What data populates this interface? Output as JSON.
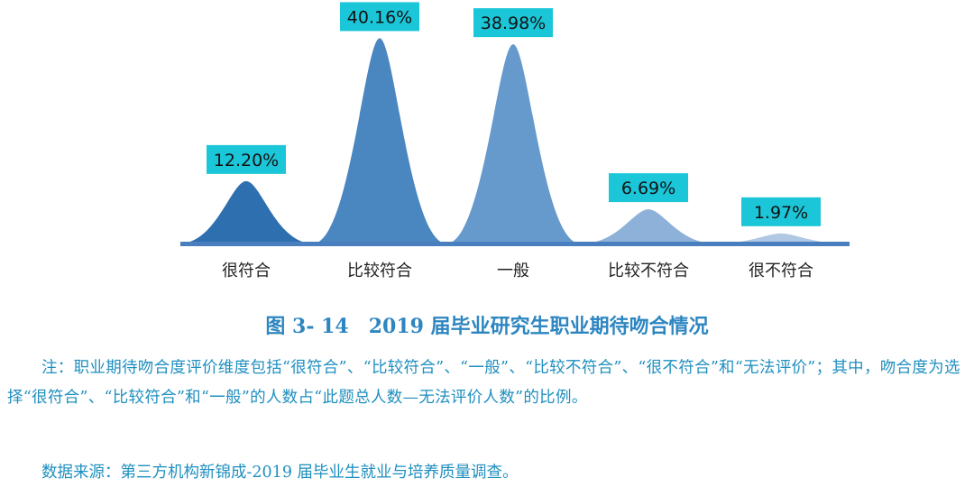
{
  "chart_data": {
    "type": "area",
    "categories": [
      "很符合",
      "比较符合",
      "一般",
      "比较不符合",
      "很不符合"
    ],
    "values": [
      12.2,
      40.16,
      38.98,
      6.69,
      1.97
    ],
    "data_labels": [
      "12.20%",
      "40.16%",
      "38.98%",
      "6.69%",
      "1.97%"
    ],
    "ylim": [
      0,
      45
    ],
    "grid": false,
    "colors": [
      "#2e6fb0",
      "#4a86c0",
      "#6699cc",
      "#8eb1d9",
      "#b0c8e4"
    ],
    "label_bg": "#1bc6d8",
    "baseline_color": "#4a7fbf"
  },
  "caption": "图 3- 14　2019 届毕业研究生职业期待吻合情况",
  "note": "注：职业期待吻合度评价维度包括“很符合”、“比较符合”、“一般”、“比较不符合”、“很不符合”和“无法评价”；其中，吻合度为选择“很符合”、“比较符合”和“一般”的人数占“此题总人数—无法评价人数”的比例。",
  "source": "数据来源：第三方机构新锦成-2019 届毕业生就业与培养质量调查。"
}
